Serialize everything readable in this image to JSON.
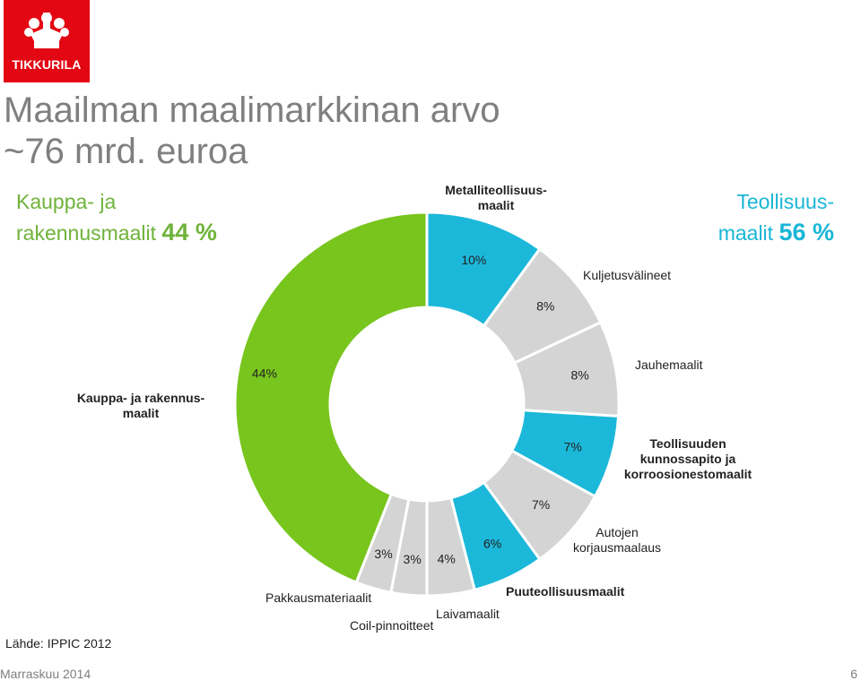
{
  "brand": {
    "name": "TIKKURILA",
    "color": "#e30613"
  },
  "title_line1": "Maailman maalimarkkinan arvo",
  "title_line2": "~76 mrd. euroa",
  "left_group": {
    "line1": "Kauppa- ja",
    "line2": "rakennusmaalit",
    "pct": "44 %",
    "color": "#6fb33a"
  },
  "right_group": {
    "line1": "Teollisuus-",
    "line2": "maalit",
    "pct": "56 %",
    "color": "#1ab6d6"
  },
  "chart_data": {
    "type": "pie",
    "donut": true,
    "slices": [
      {
        "name": "Metalliteollisuusmaalit",
        "value": 10,
        "label": "10%",
        "color": "#1cb8da"
      },
      {
        "name": "Kuljetusvälineet",
        "value": 8,
        "label": "8%",
        "color": "#d4d4d4"
      },
      {
        "name": "Jauhemaalit",
        "value": 8,
        "label": "8%",
        "color": "#d4d4d4"
      },
      {
        "name": "Teollisuuden kunnossapito ja korroosionestomaalit",
        "value": 7,
        "label": "7%",
        "color": "#1cb8da"
      },
      {
        "name": "Autojen korjausmaalaus",
        "value": 7,
        "label": "7%",
        "color": "#d4d4d4"
      },
      {
        "name": "Puuteollisuusmaalit",
        "value": 6,
        "label": "6%",
        "color": "#1cb8da"
      },
      {
        "name": "Laivamaalit",
        "value": 4,
        "label": "4%",
        "color": "#d4d4d4"
      },
      {
        "name": "Coil-pinnoitteet",
        "value": 3,
        "label": "3%",
        "color": "#d4d4d4"
      },
      {
        "name": "Pakkausmateriaalit",
        "value": 3,
        "label": "3%",
        "color": "#d4d4d4"
      },
      {
        "name": "Kauppa- ja rakennusmaalit",
        "value": 44,
        "label": "44%",
        "color": "#78c51d"
      }
    ]
  },
  "labels": {
    "metal": [
      "Metalliteollisuus-",
      "maalit"
    ],
    "kuljetus": "Kuljetusvälineet",
    "jauhe": "Jauhemaalit",
    "teoll": [
      "Teollisuuden",
      "kunnossapito ja",
      "korroosionestomaalit"
    ],
    "autojen": [
      "Autojen",
      "korjausmaalaus"
    ],
    "puu": "Puuteollisuusmaalit",
    "laiva": "Laivamaalit",
    "coil": "Coil-pinnoitteet",
    "pakkaus": "Pakkausmateriaalit",
    "kauppa": [
      "Kauppa- ja rakennus-",
      "maalit"
    ]
  },
  "source": "Lähde: IPPIC 2012",
  "footer_left": "Marraskuu 2014",
  "footer_right": "6"
}
